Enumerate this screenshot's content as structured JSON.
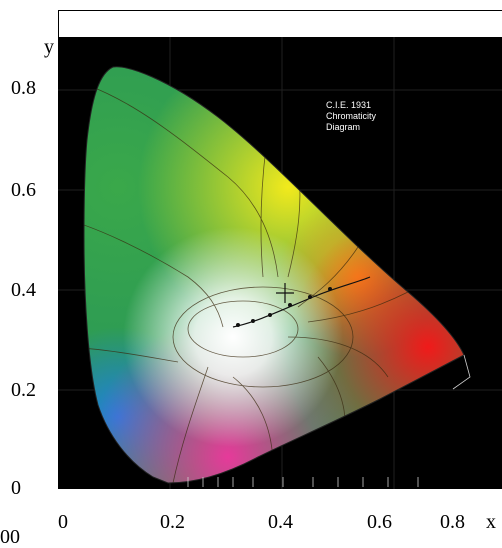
{
  "figure": {
    "title_lines": [
      "C.I.E. 1931",
      "Chromaticity",
      "Diagram"
    ],
    "axis_x_label": "x",
    "axis_y_label": "y",
    "origin_label": "0",
    "x_ticks": [
      "0",
      "0.2",
      "0.4",
      "0.6",
      "0.8"
    ],
    "y_ticks": [
      "0.8",
      "0.6",
      "0.4",
      "0.2"
    ],
    "corner_fragment": "00"
  },
  "colors": {
    "background_plot": "#000000",
    "frame": "#ffffff",
    "text": "#000000"
  }
}
